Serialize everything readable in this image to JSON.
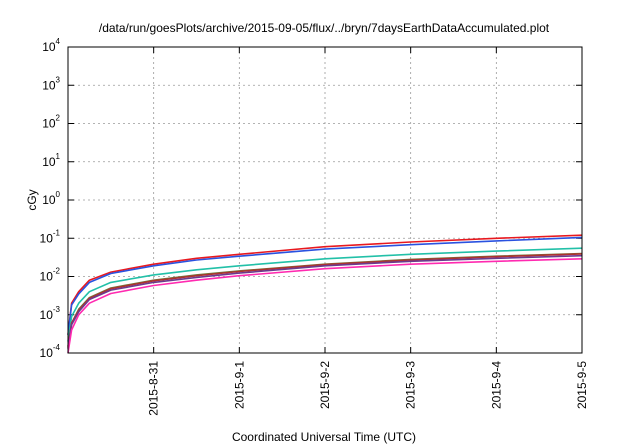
{
  "chart_data": {
    "type": "line",
    "title": "/data/run/goesPlots/archive/2015-09-05/flux/../bryn/7daysEarthDataAccumulated.plot",
    "xlabel": "Coordinated Universal Time (UTC)",
    "ylabel": "cGy",
    "y_scale": "log",
    "ylim": [
      0.0001,
      10000
    ],
    "xlim": [
      "2015-08-30",
      "2015-09-05"
    ],
    "grid": true,
    "x_ticks": [
      "2015-8-31",
      "2015-9-1",
      "2015-9-2",
      "2015-9-3",
      "2015-9-4",
      "2015-9-5"
    ],
    "x_tick_dates": [
      "2015-08-31",
      "2015-09-01",
      "2015-09-02",
      "2015-09-03",
      "2015-09-04",
      "2015-09-05"
    ],
    "y_ticks": [
      {
        "base": "10",
        "exp": "-4"
      },
      {
        "base": "10",
        "exp": "-3"
      },
      {
        "base": "10",
        "exp": "-2"
      },
      {
        "base": "10",
        "exp": "-1"
      },
      {
        "base": "10",
        "exp": "0"
      },
      {
        "base": "10",
        "exp": "1"
      },
      {
        "base": "10",
        "exp": "2"
      },
      {
        "base": "10",
        "exp": "3"
      },
      {
        "base": "10",
        "exp": "4"
      }
    ],
    "x": [
      "2015-08-30 00:00",
      "2015-08-30 01:00",
      "2015-08-30 03:00",
      "2015-08-30 06:00",
      "2015-08-30 12:00",
      "2015-08-31 00:00",
      "2015-08-31 12:00",
      "2015-09-01 00:00",
      "2015-09-02 00:00",
      "2015-09-03 00:00",
      "2015-09-04 00:00",
      "2015-09-05 00:00"
    ],
    "series": [
      {
        "color": "#e8191f",
        "values": [
          0.0003,
          0.002,
          0.004,
          0.008,
          0.013,
          0.021,
          0.03,
          0.038,
          0.06,
          0.08,
          0.1,
          0.12
        ]
      },
      {
        "color": "#2a52e0",
        "values": [
          0.0003,
          0.0018,
          0.0035,
          0.007,
          0.012,
          0.019,
          0.027,
          0.034,
          0.052,
          0.068,
          0.085,
          0.105
        ]
      },
      {
        "color": "#22c0a8",
        "values": [
          0.0002,
          0.0009,
          0.002,
          0.004,
          0.007,
          0.011,
          0.015,
          0.019,
          0.029,
          0.038,
          0.046,
          0.055
        ]
      },
      {
        "color": "#6b7a3a",
        "values": [
          0.00015,
          0.0006,
          0.0014,
          0.0028,
          0.005,
          0.008,
          0.011,
          0.014,
          0.021,
          0.028,
          0.034,
          0.04
        ]
      },
      {
        "color": "#b03030",
        "values": [
          0.00014,
          0.0006,
          0.0013,
          0.0027,
          0.0048,
          0.0077,
          0.0105,
          0.0135,
          0.0205,
          0.027,
          0.033,
          0.039
        ]
      },
      {
        "color": "#6a3a8e",
        "values": [
          0.00013,
          0.00055,
          0.0012,
          0.0025,
          0.0044,
          0.007,
          0.0095,
          0.0123,
          0.019,
          0.025,
          0.03,
          0.035
        ]
      },
      {
        "color": "#ff2ab0",
        "values": [
          0.0001,
          0.0004,
          0.001,
          0.002,
          0.0036,
          0.0058,
          0.008,
          0.0105,
          0.016,
          0.021,
          0.025,
          0.029
        ]
      }
    ]
  }
}
